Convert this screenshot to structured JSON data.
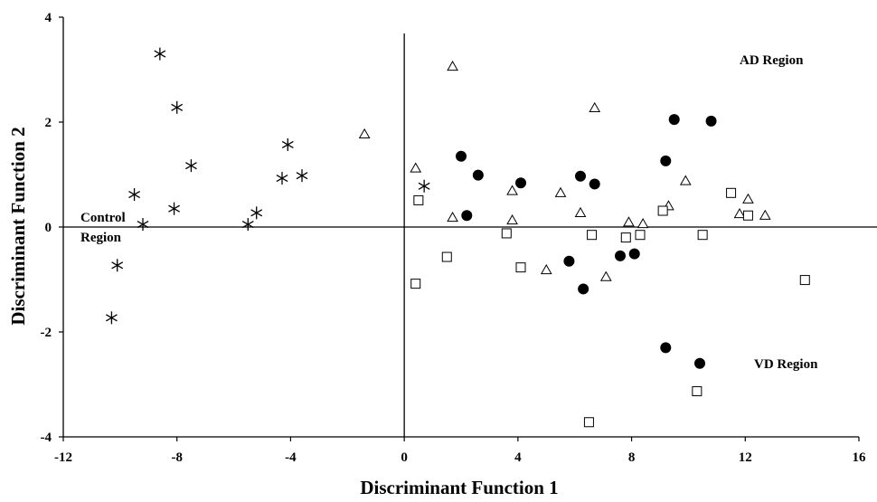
{
  "chart_data": {
    "type": "scatter",
    "title": "",
    "xlabel": "Discriminant Function 1",
    "ylabel": "Discriminant Function 2",
    "xlim": [
      -12,
      16
    ],
    "ylim": [
      -4,
      4
    ],
    "xticks": [
      "-12",
      "-8",
      "-4",
      "0",
      "4",
      "8",
      "12",
      "16"
    ],
    "yticks": [
      "4",
      "2",
      "0",
      "-2",
      "-4"
    ],
    "annotations": {
      "control": [
        "Control",
        "Region"
      ],
      "ad": "AD Region",
      "vd": "VD Region"
    },
    "series": [
      {
        "marker": "asterisk",
        "points": [
          [
            -8.6,
            3.3
          ],
          [
            -8.0,
            2.28
          ],
          [
            -7.5,
            1.17
          ],
          [
            -4.1,
            1.57
          ],
          [
            -3.6,
            0.98
          ],
          [
            -4.3,
            0.93
          ],
          [
            -9.5,
            0.62
          ],
          [
            -8.1,
            0.35
          ],
          [
            -5.2,
            0.27
          ],
          [
            -5.5,
            0.05
          ],
          [
            -9.2,
            0.05
          ],
          [
            -10.1,
            -0.73
          ],
          [
            -10.3,
            -1.73
          ],
          [
            0.7,
            0.78
          ]
        ]
      },
      {
        "marker": "triangle",
        "points": [
          [
            -1.4,
            1.77
          ],
          [
            1.7,
            3.06
          ],
          [
            6.7,
            2.27
          ],
          [
            0.4,
            1.12
          ],
          [
            3.8,
            0.69
          ],
          [
            5.5,
            0.65
          ],
          [
            1.7,
            0.18
          ],
          [
            3.8,
            0.13
          ],
          [
            6.2,
            0.27
          ],
          [
            7.9,
            0.09
          ],
          [
            8.4,
            0.06
          ],
          [
            9.3,
            0.4
          ],
          [
            9.9,
            0.88
          ],
          [
            11.8,
            0.25
          ],
          [
            12.1,
            0.53
          ],
          [
            12.7,
            0.22
          ],
          [
            5.0,
            -0.82
          ],
          [
            7.1,
            -0.95
          ]
        ]
      },
      {
        "marker": "square",
        "points": [
          [
            0.5,
            0.51
          ],
          [
            3.6,
            -0.12
          ],
          [
            6.6,
            -0.15
          ],
          [
            7.8,
            -0.2
          ],
          [
            8.3,
            -0.15
          ],
          [
            9.1,
            0.31
          ],
          [
            10.5,
            -0.15
          ],
          [
            11.5,
            0.65
          ],
          [
            12.1,
            0.22
          ],
          [
            1.5,
            -0.57
          ],
          [
            4.1,
            -0.77
          ],
          [
            0.4,
            -1.08
          ],
          [
            14.1,
            -1.01
          ],
          [
            10.3,
            -3.13
          ],
          [
            6.5,
            -3.72
          ]
        ]
      },
      {
        "marker": "circle",
        "points": [
          [
            2.0,
            1.35
          ],
          [
            2.6,
            0.99
          ],
          [
            4.1,
            0.84
          ],
          [
            6.2,
            0.97
          ],
          [
            6.7,
            0.82
          ],
          [
            9.2,
            1.26
          ],
          [
            9.5,
            2.05
          ],
          [
            10.8,
            2.02
          ],
          [
            2.2,
            0.22
          ],
          [
            5.8,
            -0.65
          ],
          [
            7.6,
            -0.55
          ],
          [
            8.1,
            -0.51
          ],
          [
            6.3,
            -1.18
          ],
          [
            9.2,
            -2.3
          ],
          [
            10.4,
            -2.6
          ]
        ]
      }
    ]
  }
}
